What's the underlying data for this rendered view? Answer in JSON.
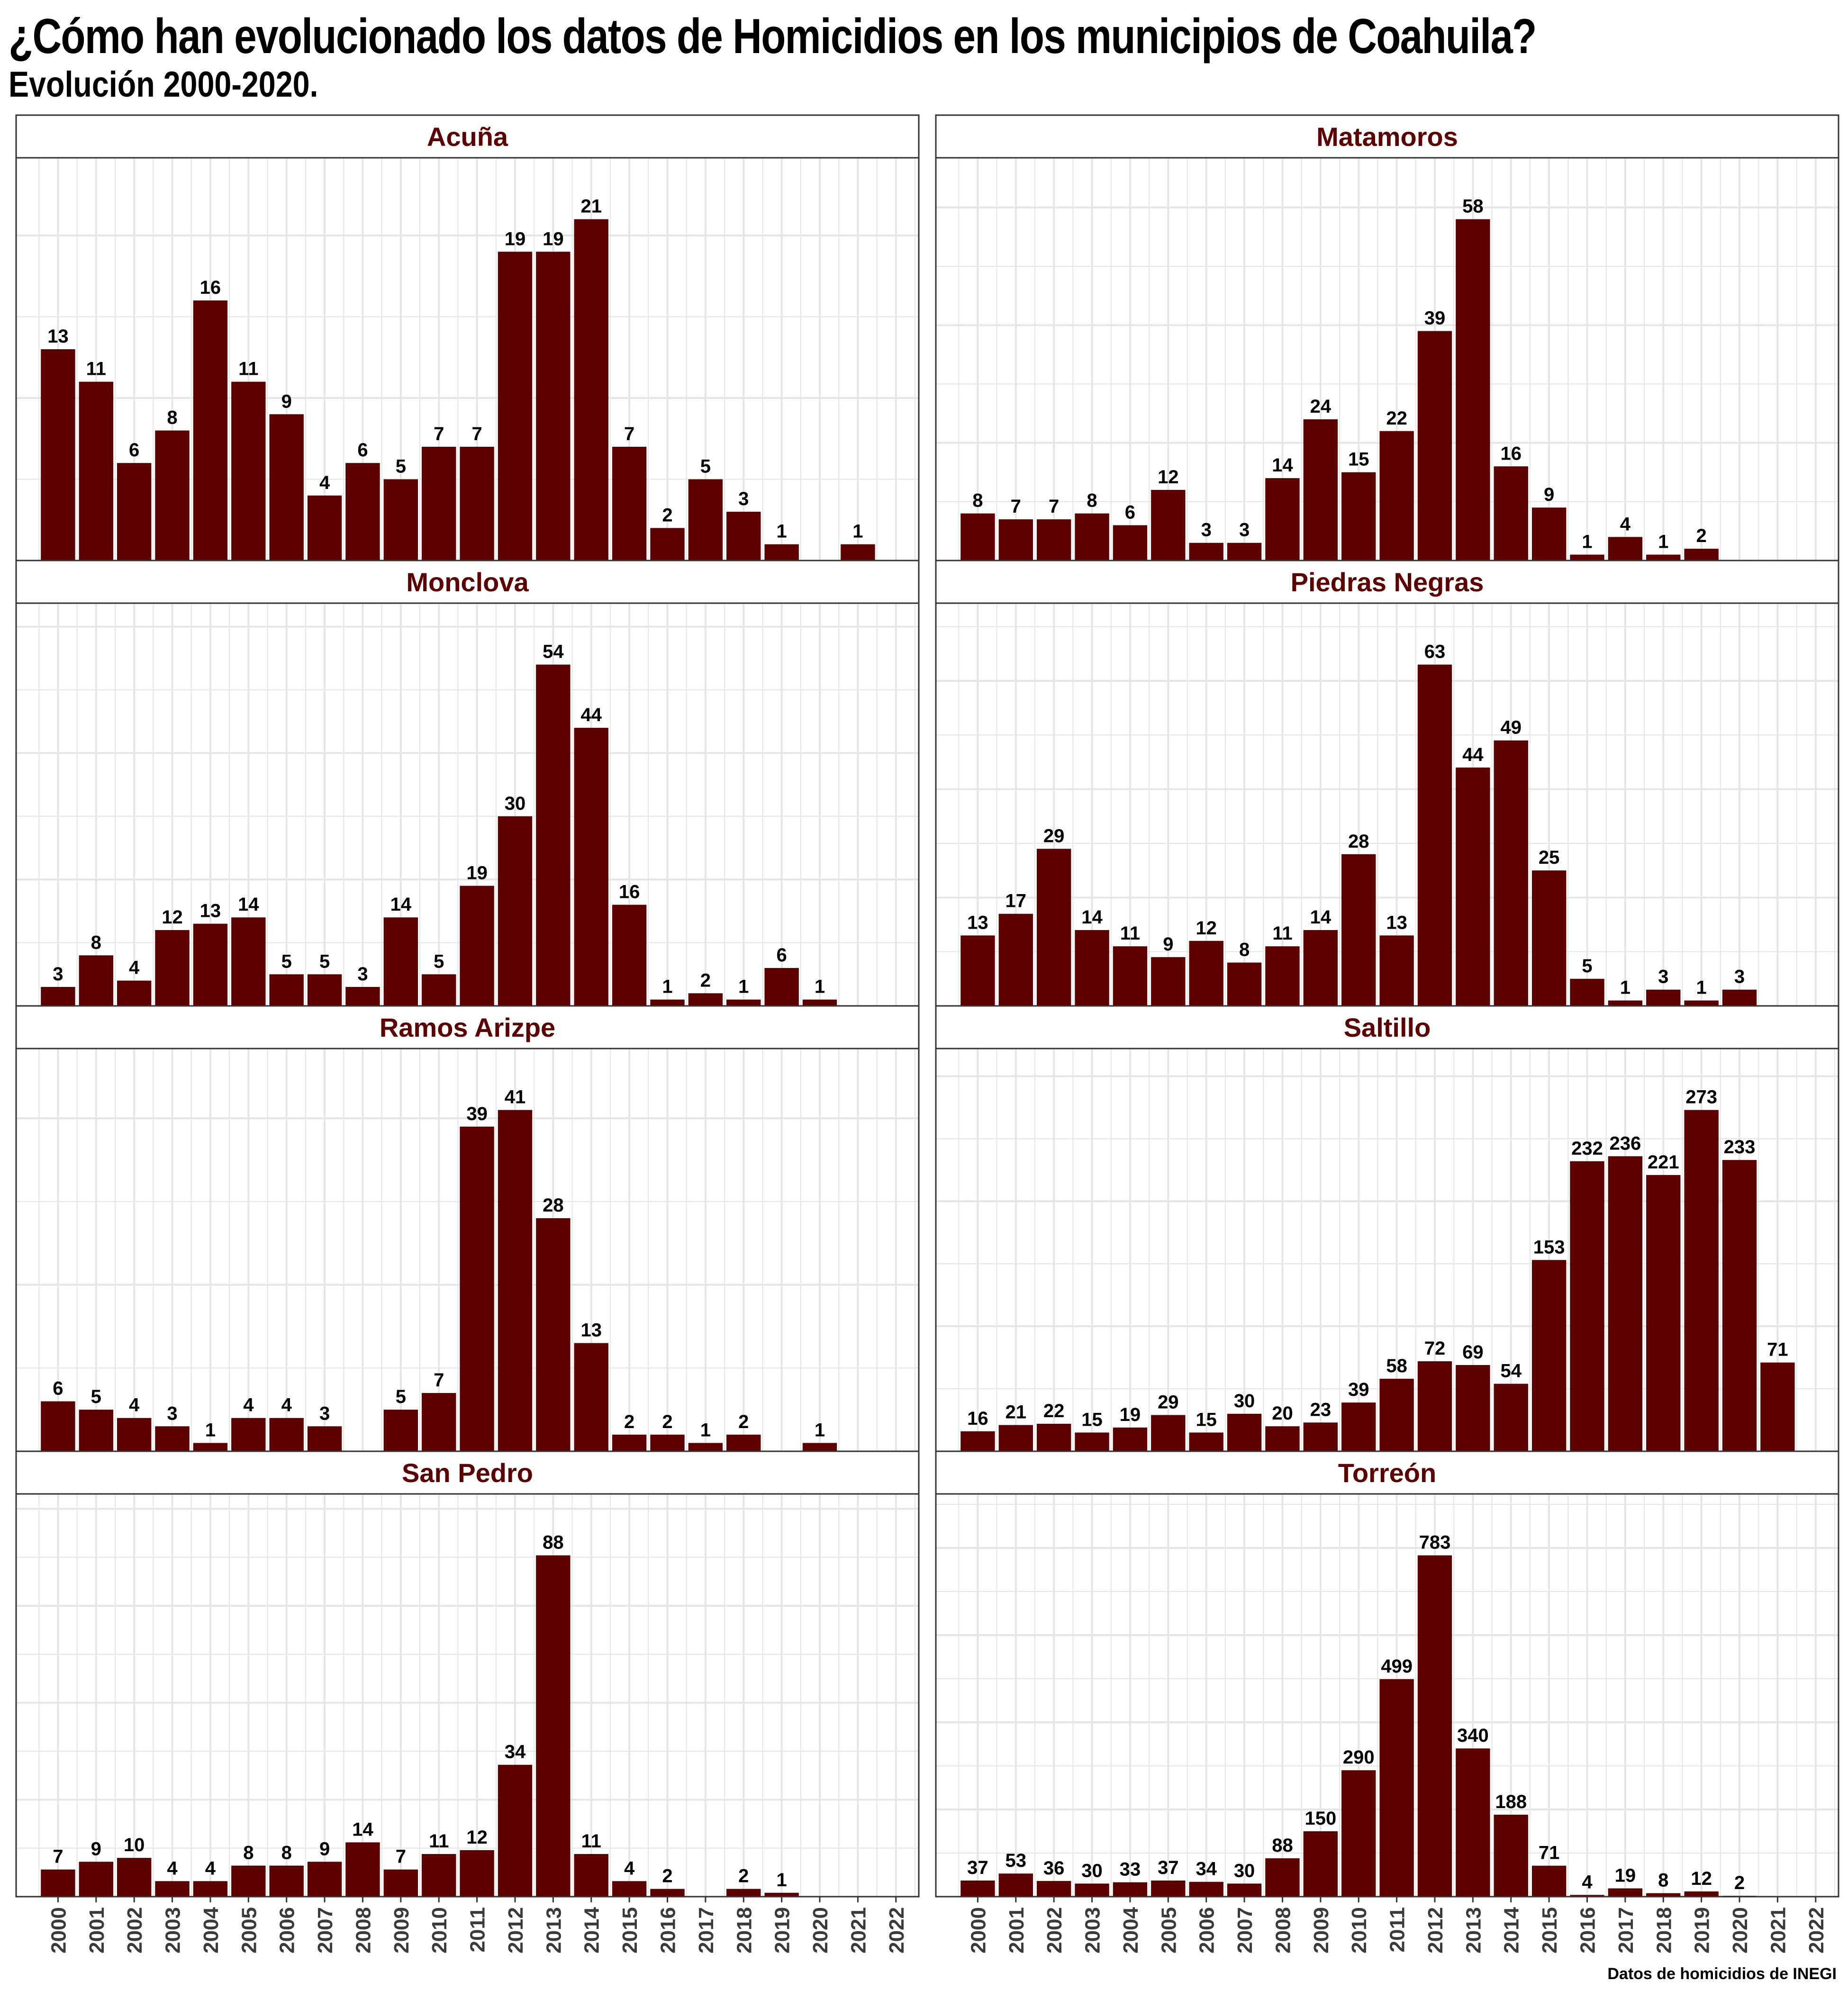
{
  "title": "¿Cómo han evolucionado los datos de Homicidios en los municipios de Coahuila?",
  "subtitle": "Evolución 2000-2020.",
  "caption": "Datos de homicidios de INEGI",
  "colors": {
    "bar": "#5c0000",
    "strip_text": "#5c0000",
    "grid": "#e6e6e6",
    "border": "#333333"
  },
  "chart_data": {
    "type": "bar",
    "layout": "facet-grid-2-columns",
    "x_ticks": [
      "2000",
      "2001",
      "2002",
      "2003",
      "2004",
      "2005",
      "2006",
      "2007",
      "2008",
      "2009",
      "2010",
      "2011",
      "2012",
      "2013",
      "2014",
      "2015",
      "2016",
      "2017",
      "2018",
      "2019",
      "2020",
      "2021",
      "2022"
    ],
    "grid": true,
    "legend": "none",
    "panels": [
      {
        "name": "Acuña",
        "points": [
          [
            2000,
            13
          ],
          [
            2001,
            11
          ],
          [
            2002,
            6
          ],
          [
            2003,
            8
          ],
          [
            2004,
            16
          ],
          [
            2005,
            11
          ],
          [
            2006,
            9
          ],
          [
            2007,
            4
          ],
          [
            2008,
            6
          ],
          [
            2009,
            5
          ],
          [
            2010,
            7
          ],
          [
            2011,
            7
          ],
          [
            2012,
            19
          ],
          [
            2013,
            19
          ],
          [
            2014,
            21
          ],
          [
            2015,
            7
          ],
          [
            2016,
            2
          ],
          [
            2017,
            5
          ],
          [
            2018,
            3
          ],
          [
            2019,
            1
          ],
          [
            2021,
            1
          ]
        ]
      },
      {
        "name": "Matamoros",
        "points": [
          [
            2000,
            8
          ],
          [
            2001,
            7
          ],
          [
            2002,
            7
          ],
          [
            2003,
            8
          ],
          [
            2004,
            6
          ],
          [
            2005,
            12
          ],
          [
            2006,
            3
          ],
          [
            2007,
            3
          ],
          [
            2008,
            14
          ],
          [
            2009,
            24
          ],
          [
            2010,
            15
          ],
          [
            2011,
            22
          ],
          [
            2012,
            39
          ],
          [
            2013,
            58
          ],
          [
            2014,
            16
          ],
          [
            2015,
            9
          ],
          [
            2016,
            1
          ],
          [
            2017,
            4
          ],
          [
            2018,
            1
          ],
          [
            2019,
            2
          ]
        ]
      },
      {
        "name": "Monclova",
        "points": [
          [
            2000,
            3
          ],
          [
            2001,
            8
          ],
          [
            2002,
            4
          ],
          [
            2003,
            12
          ],
          [
            2004,
            13
          ],
          [
            2005,
            14
          ],
          [
            2006,
            5
          ],
          [
            2007,
            5
          ],
          [
            2008,
            3
          ],
          [
            2009,
            14
          ],
          [
            2010,
            5
          ],
          [
            2011,
            19
          ],
          [
            2012,
            30
          ],
          [
            2013,
            54
          ],
          [
            2014,
            44
          ],
          [
            2015,
            16
          ],
          [
            2016,
            1
          ],
          [
            2017,
            2
          ],
          [
            2018,
            1
          ],
          [
            2019,
            6
          ],
          [
            2020,
            1
          ]
        ]
      },
      {
        "name": "Piedras Negras",
        "points": [
          [
            2000,
            13
          ],
          [
            2001,
            17
          ],
          [
            2002,
            29
          ],
          [
            2003,
            14
          ],
          [
            2004,
            11
          ],
          [
            2005,
            9
          ],
          [
            2006,
            12
          ],
          [
            2007,
            8
          ],
          [
            2008,
            11
          ],
          [
            2009,
            14
          ],
          [
            2010,
            28
          ],
          [
            2011,
            13
          ],
          [
            2012,
            63
          ],
          [
            2013,
            44
          ],
          [
            2014,
            49
          ],
          [
            2015,
            25
          ],
          [
            2016,
            5
          ],
          [
            2017,
            1
          ],
          [
            2018,
            3
          ],
          [
            2019,
            1
          ],
          [
            2020,
            3
          ]
        ]
      },
      {
        "name": "Ramos Arizpe",
        "points": [
          [
            2000,
            6
          ],
          [
            2001,
            5
          ],
          [
            2002,
            4
          ],
          [
            2003,
            3
          ],
          [
            2004,
            1
          ],
          [
            2005,
            4
          ],
          [
            2006,
            4
          ],
          [
            2007,
            3
          ],
          [
            2009,
            5
          ],
          [
            2010,
            7
          ],
          [
            2011,
            39
          ],
          [
            2012,
            41
          ],
          [
            2013,
            28
          ],
          [
            2014,
            13
          ],
          [
            2015,
            2
          ],
          [
            2016,
            2
          ],
          [
            2017,
            1
          ],
          [
            2018,
            2
          ],
          [
            2020,
            1
          ]
        ]
      },
      {
        "name": "Saltillo",
        "points": [
          [
            2000,
            16
          ],
          [
            2001,
            21
          ],
          [
            2002,
            22
          ],
          [
            2003,
            15
          ],
          [
            2004,
            19
          ],
          [
            2005,
            29
          ],
          [
            2006,
            15
          ],
          [
            2007,
            30
          ],
          [
            2008,
            20
          ],
          [
            2009,
            23
          ],
          [
            2010,
            39
          ],
          [
            2011,
            58
          ],
          [
            2012,
            72
          ],
          [
            2013,
            69
          ],
          [
            2014,
            54
          ],
          [
            2015,
            153
          ],
          [
            2016,
            232
          ],
          [
            2017,
            236
          ],
          [
            2018,
            221
          ],
          [
            2019,
            273
          ],
          [
            2020,
            233
          ],
          [
            2021,
            71
          ]
        ]
      },
      {
        "name": "San Pedro",
        "points": [
          [
            2000,
            7
          ],
          [
            2001,
            9
          ],
          [
            2002,
            10
          ],
          [
            2003,
            4
          ],
          [
            2004,
            4
          ],
          [
            2005,
            8
          ],
          [
            2006,
            8
          ],
          [
            2007,
            9
          ],
          [
            2008,
            14
          ],
          [
            2009,
            7
          ],
          [
            2010,
            11
          ],
          [
            2011,
            12
          ],
          [
            2012,
            34
          ],
          [
            2013,
            88
          ],
          [
            2014,
            11
          ],
          [
            2015,
            4
          ],
          [
            2016,
            2
          ],
          [
            2018,
            2
          ],
          [
            2019,
            1
          ]
        ]
      },
      {
        "name": "Torreón",
        "points": [
          [
            2000,
            37
          ],
          [
            2001,
            53
          ],
          [
            2002,
            36
          ],
          [
            2003,
            30
          ],
          [
            2004,
            33
          ],
          [
            2005,
            37
          ],
          [
            2006,
            34
          ],
          [
            2007,
            30
          ],
          [
            2008,
            88
          ],
          [
            2009,
            150
          ],
          [
            2010,
            290
          ],
          [
            2011,
            499
          ],
          [
            2012,
            783
          ],
          [
            2013,
            340
          ],
          [
            2014,
            188
          ],
          [
            2015,
            71
          ],
          [
            2016,
            4
          ],
          [
            2017,
            19
          ],
          [
            2018,
            8
          ],
          [
            2019,
            12
          ],
          [
            2020,
            2
          ]
        ]
      }
    ]
  }
}
